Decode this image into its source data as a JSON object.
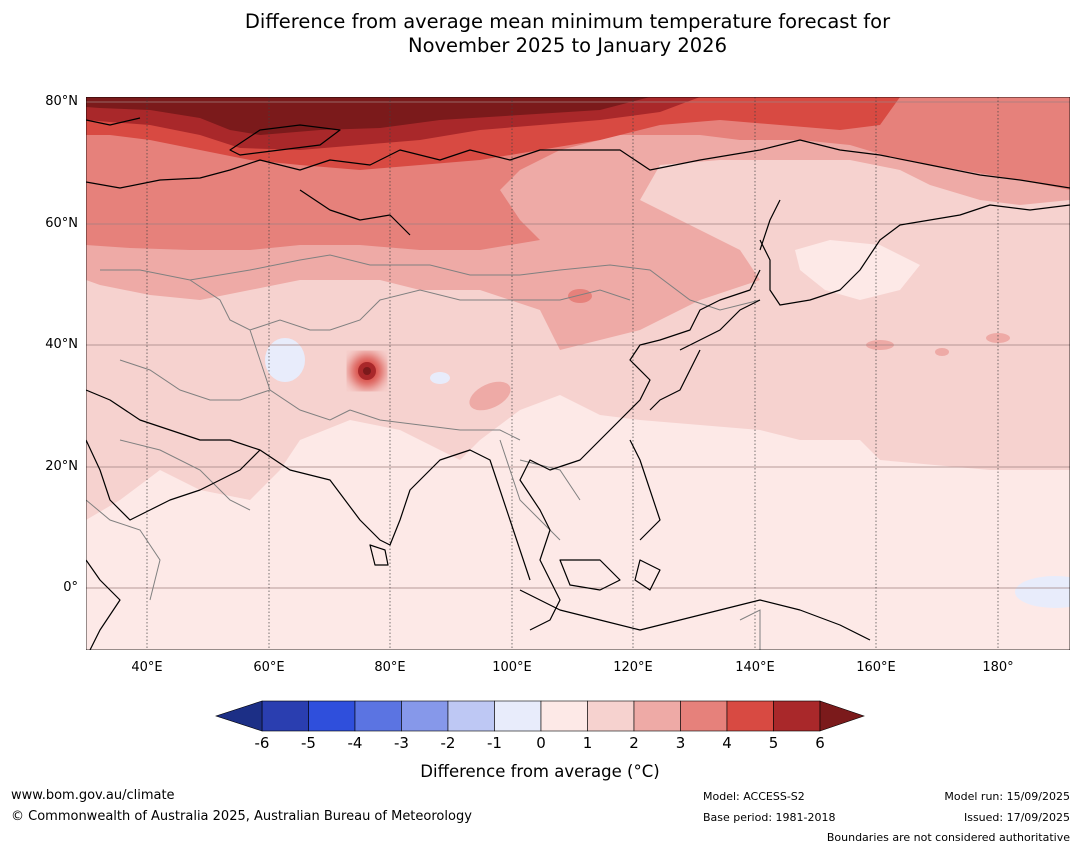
{
  "title": {
    "line1": "Difference from average mean minimum temperature forecast for",
    "line2": "November 2025 to January 2026"
  },
  "map": {
    "lat_labels": [
      "80°N",
      "60°N",
      "40°N",
      "20°N",
      "0°"
    ],
    "lon_labels": [
      "40°E",
      "60°E",
      "80°E",
      "100°E",
      "120°E",
      "140°E",
      "160°E",
      "180°"
    ]
  },
  "colorbar": {
    "ticks": [
      "-6",
      "-5",
      "-4",
      "-3",
      "-2",
      "-1",
      "0",
      "1",
      "2",
      "3",
      "4",
      "5",
      "6"
    ],
    "colors": [
      "#2a3eb0",
      "#2f4fdc",
      "#5b74e2",
      "#8698ea",
      "#bec8f4",
      "#e8ecfb",
      "#fde9e7",
      "#f6d2cf",
      "#eeaaa6",
      "#e6817b",
      "#d84a42",
      "#a9282a"
    ],
    "under_color": "#1c2f86",
    "over_color": "#7b1a1b",
    "label": "Difference from average ($^\\circ$C)",
    "label_text": "Difference from average (°C)"
  },
  "footer": {
    "website": "www.bom.gov.au/climate",
    "copyright": "© Commonwealth of Australia 2025, Australian Bureau of Meteorology",
    "model": "Model: ACCESS-S2",
    "base_period": "Base period: 1981-2018",
    "model_run": "Model run: 15/09/2025",
    "issued": "Issued: 17/09/2025",
    "disclaimer": "Boundaries are not considered authoritative"
  }
}
